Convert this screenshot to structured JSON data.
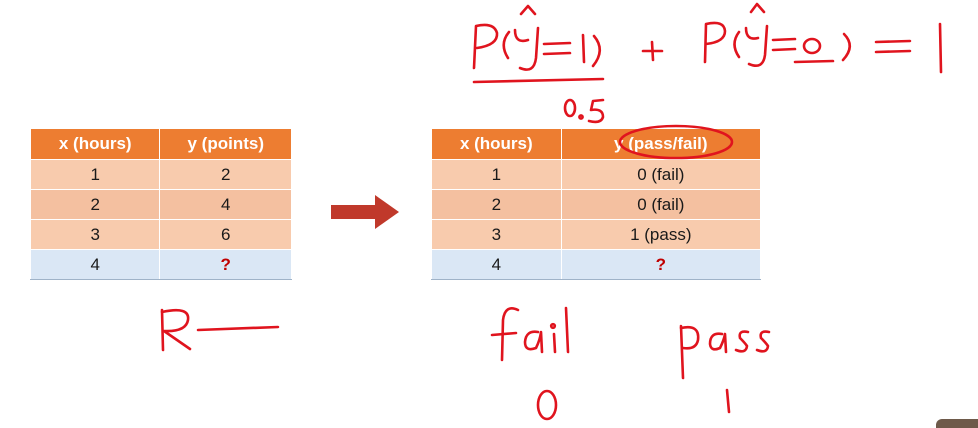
{
  "left_table": {
    "headers": [
      "x (hours)",
      "y (points)"
    ],
    "rows": [
      [
        "1",
        "2"
      ],
      [
        "2",
        "4"
      ],
      [
        "3",
        "6"
      ],
      [
        "4",
        "?"
      ]
    ]
  },
  "right_table": {
    "headers": [
      "x (hours)",
      "y (pass/fail)"
    ],
    "rows": [
      [
        "1",
        "0 (fail)"
      ],
      [
        "2",
        "0 (fail)"
      ],
      [
        "3",
        "1 (pass)"
      ],
      [
        "4",
        "?"
      ]
    ]
  },
  "colors": {
    "header": "#ed7d31",
    "row": "#f8cbad",
    "query_row": "#dae7f5",
    "question_mark": "#c00000",
    "arrow": "#c0392b",
    "ink": "#e0141e"
  },
  "annotations": {
    "formula": "P(ŷ=1) + P(ŷ=0) = 1",
    "formula_note": "0.5",
    "left_note": "R—",
    "fail_word": "fail",
    "fail_value": "0",
    "pass_word": "pass",
    "pass_value": "1"
  }
}
